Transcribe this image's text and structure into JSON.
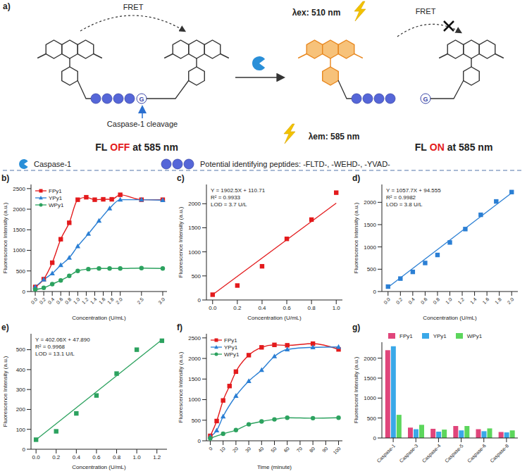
{
  "diagram": {
    "panel": "a)",
    "fret": "FRET",
    "residue": "G",
    "cleavage": "Caspase-1 cleavage",
    "fl_off": {
      "prefix": "FL",
      "state": "OFF",
      "suffix": "at 585 nm"
    },
    "excitation": "λex: 510 nm",
    "emission": "λem: 585 nm",
    "fl_on": {
      "prefix": "FL",
      "state": "ON",
      "suffix": "at 585 nm"
    },
    "legend": {
      "enzyme": "Caspase-1",
      "peptides": "Potential identifying peptides: -FLTD-, -WEHD-, -YVAD-"
    }
  },
  "chart_data": [
    {
      "panel": "b)",
      "type": "line",
      "x_label": "Concentration (U/mL)",
      "y_label": "Fluorescence Intensity (a.u.)",
      "xlim": [
        -0.1,
        3.1
      ],
      "xticks": [
        {
          "value": 0,
          "label": "0.0"
        },
        {
          "value": 0.2,
          "label": "0.2"
        },
        {
          "value": 0.4,
          "label": "0.4"
        },
        {
          "value": 0.6,
          "label": "0.6"
        },
        {
          "value": 0.8,
          "label": "0.8"
        },
        {
          "value": 1,
          "label": "1.0"
        },
        {
          "value": 1.2,
          "label": "1.2"
        },
        {
          "value": 1.4,
          "label": "1.4"
        },
        {
          "value": 1.6,
          "label": "1.6"
        },
        {
          "value": 1.8,
          "label": "1.8"
        },
        {
          "value": 2,
          "label": "2.0"
        },
        {
          "value": 2.5,
          "label": "2.5"
        },
        {
          "value": 3,
          "label": "3.0"
        }
      ],
      "ylim": [
        0,
        2600
      ],
      "yticks": [
        0,
        500,
        1000,
        1500,
        2000,
        2500
      ],
      "legend": "upper left",
      "series": [
        {
          "name": "FPy1",
          "color": "#e31a1c",
          "marker": "square",
          "x": [
            0,
            0.2,
            0.4,
            0.6,
            0.8,
            1,
            1.2,
            1.4,
            1.6,
            1.8,
            2,
            2.5,
            3
          ],
          "values": [
            110,
            300,
            700,
            1270,
            1670,
            2230,
            2290,
            2230,
            2240,
            2240,
            2350,
            2230,
            2230
          ]
        },
        {
          "name": "YPy1",
          "color": "#2b7fd4",
          "marker": "triangle",
          "x": [
            0,
            0.2,
            0.4,
            0.6,
            0.8,
            1,
            1.25,
            1.5,
            1.75,
            2,
            2.5,
            3
          ],
          "values": [
            110,
            290,
            440,
            640,
            820,
            1100,
            1400,
            1720,
            2020,
            2230,
            2230,
            2220
          ]
        },
        {
          "name": "WPy1",
          "color": "#2ca25f",
          "marker": "circle",
          "x": [
            0,
            0.2,
            0.4,
            0.6,
            0.8,
            1,
            1.25,
            1.5,
            1.75,
            2,
            2.5,
            3
          ],
          "values": [
            48,
            90,
            180,
            270,
            380,
            500,
            545,
            560,
            560,
            560,
            570,
            560
          ]
        }
      ]
    },
    {
      "panel": "c)",
      "type": "scatter",
      "x_label": "Concentration (U/mL)",
      "y_label": "Fluorescence Intensity (a.u.)",
      "xlim": [
        -0.05,
        1.05
      ],
      "xticks": [
        {
          "value": 0,
          "label": "0.0"
        },
        {
          "value": 0.2,
          "label": "0.2"
        },
        {
          "value": 0.4,
          "label": "0.4"
        },
        {
          "value": 0.6,
          "label": "0.6"
        },
        {
          "value": 0.8,
          "label": "0.8"
        },
        {
          "value": 1,
          "label": "1.0"
        }
      ],
      "ylim": [
        0,
        2400
      ],
      "yticks": [
        0,
        500,
        1000,
        1500,
        2000
      ],
      "series": [
        {
          "color": "#e31a1c",
          "marker": "square",
          "x": [
            0,
            0.2,
            0.4,
            0.6,
            0.8,
            1
          ],
          "values": [
            110,
            300,
            700,
            1270,
            1670,
            2230
          ]
        }
      ],
      "fit_line": {
        "color": "#e31a1c",
        "x": [
          0,
          1
        ],
        "values": [
          111,
          2013
        ]
      },
      "annotations": [
        "Y = 1902.5X + 110.71",
        "R² = 0.9933",
        "LOD = 3.7 U/L"
      ]
    },
    {
      "panel": "d)",
      "type": "scatter",
      "x_label": "Concentration (U/mL)",
      "y_label": "Fluorescence Intensity (a.u.)",
      "xlim": [
        -0.1,
        2.1
      ],
      "xticks": [
        {
          "value": 0,
          "label": "0.0"
        },
        {
          "value": 0.2,
          "label": "0.2"
        },
        {
          "value": 0.4,
          "label": "0.4"
        },
        {
          "value": 0.6,
          "label": "0.6"
        },
        {
          "value": 0.8,
          "label": "0.8"
        },
        {
          "value": 1,
          "label": "1.0"
        },
        {
          "value": 1.2,
          "label": "1.2"
        },
        {
          "value": 1.4,
          "label": "1.4"
        },
        {
          "value": 1.6,
          "label": "1.6"
        },
        {
          "value": 1.8,
          "label": "1.8"
        },
        {
          "value": 2,
          "label": "2.0"
        }
      ],
      "ylim": [
        0,
        2400
      ],
      "yticks": [
        0,
        500,
        1000,
        1500,
        2000
      ],
      "series": [
        {
          "color": "#2b7fd4",
          "marker": "square",
          "x": [
            0,
            0.2,
            0.4,
            0.6,
            0.8,
            1,
            1.25,
            1.5,
            1.75,
            2
          ],
          "values": [
            110,
            290,
            440,
            640,
            820,
            1100,
            1400,
            1720,
            2020,
            2230
          ]
        }
      ],
      "fit_line": {
        "color": "#2b7fd4",
        "x": [
          0,
          2
        ],
        "values": [
          95,
          2210
        ]
      },
      "annotations": [
        "Y = 1057.7X + 94.555",
        "R² = 0.9982",
        "LOD = 3.8 U/L"
      ]
    },
    {
      "panel": "e)",
      "type": "scatter",
      "x_label": "Concentration (U/mL)",
      "y_label": "Fluorescence Intensity (a.u.)",
      "xlim": [
        -0.05,
        1.3
      ],
      "xticks": [
        {
          "value": 0,
          "label": "0.0"
        },
        {
          "value": 0.2,
          "label": "0.2"
        },
        {
          "value": 0.4,
          "label": "0.4"
        },
        {
          "value": 0.6,
          "label": "0.6"
        },
        {
          "value": 0.8,
          "label": "0.8"
        },
        {
          "value": 1,
          "label": "1.0"
        },
        {
          "value": 1.2,
          "label": "1.2"
        }
      ],
      "ylim": [
        0,
        580
      ],
      "yticks": [
        0,
        100,
        200,
        300,
        400,
        500
      ],
      "series": [
        {
          "color": "#2ca25f",
          "marker": "square",
          "x": [
            0,
            0.2,
            0.4,
            0.6,
            0.8,
            1,
            1.25
          ],
          "values": [
            48,
            90,
            180,
            270,
            380,
            500,
            545
          ]
        }
      ],
      "fit_line": {
        "color": "#2ca25f",
        "x": [
          0,
          1.25
        ],
        "values": [
          48,
          550
        ]
      },
      "annotations": [
        "Y = 402.06X + 47.890",
        "R² = 0.9968",
        "LOD = 13.1 U/L"
      ]
    },
    {
      "panel": "f)",
      "type": "line",
      "x_label": "Time (minute)",
      "y_label": "Fluorescence Intensity (a.u.)",
      "xlim": [
        -3,
        103
      ],
      "xticks": [
        0,
        10,
        20,
        30,
        40,
        50,
        60,
        70,
        80,
        90,
        100
      ],
      "ylim": [
        0,
        2600
      ],
      "yticks": [
        0,
        500,
        1000,
        1500,
        2000,
        2500
      ],
      "legend": "upper left",
      "series": [
        {
          "name": "FPy1",
          "color": "#e31a1c",
          "marker": "square",
          "x": [
            0,
            5,
            10,
            15,
            20,
            30,
            40,
            50,
            60,
            80,
            100
          ],
          "values": [
            120,
            480,
            980,
            1330,
            1680,
            2080,
            2270,
            2330,
            2320,
            2360,
            2220
          ]
        },
        {
          "name": "YPy1",
          "color": "#2b7fd4",
          "marker": "triangle",
          "x": [
            0,
            5,
            10,
            20,
            30,
            40,
            50,
            60,
            80,
            100
          ],
          "values": [
            100,
            250,
            590,
            1090,
            1450,
            1720,
            2050,
            2220,
            2270,
            2280
          ]
        },
        {
          "name": "WPy1",
          "color": "#2ca25f",
          "marker": "circle",
          "x": [
            0,
            10,
            20,
            30,
            40,
            50,
            60,
            80,
            100
          ],
          "values": [
            60,
            170,
            260,
            400,
            470,
            520,
            560,
            550,
            560
          ]
        }
      ]
    },
    {
      "panel": "g)",
      "type": "bar",
      "y_label": "Fluorescent Intensity (a.u.)",
      "categories": [
        "Caspase-1",
        "Caspase-3",
        "Caspase-4",
        "Caspase-5",
        "Caspase-6",
        "Caspase-8"
      ],
      "ylim": [
        0,
        2400
      ],
      "yticks": [
        0,
        500,
        1000,
        1500,
        2000
      ],
      "legend": "top",
      "series": [
        {
          "name": "FPy1",
          "color": "#e0457b",
          "values": [
            2200,
            260,
            230,
            300,
            220,
            150
          ]
        },
        {
          "name": "YPy1",
          "color": "#3aa8e8",
          "values": [
            2300,
            220,
            160,
            190,
            170,
            140
          ]
        },
        {
          "name": "WPy1",
          "color": "#5cd65c",
          "values": [
            580,
            330,
            210,
            300,
            240,
            190
          ]
        }
      ]
    }
  ]
}
